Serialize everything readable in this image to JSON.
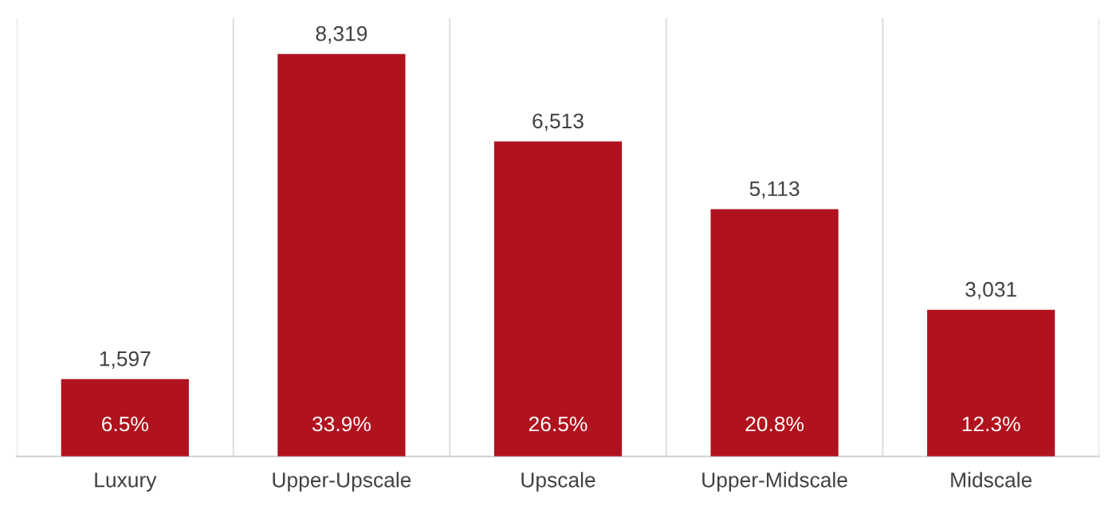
{
  "chart_data": {
    "type": "bar",
    "categories": [
      "Luxury",
      "Upper-Upscale",
      "Upscale",
      "Upper-Midscale",
      "Midscale"
    ],
    "values": [
      1597,
      8319,
      6513,
      5113,
      3031
    ],
    "value_labels": [
      "1,597",
      "8,319",
      "6,513",
      "5,113",
      "3,031"
    ],
    "color": "#b0131e",
    "annotations": [
      "6.5%",
      "33.9%",
      "26.5%",
      "20.8%",
      "12.3%"
    ],
    "grid": "x",
    "tick_labels": "x"
  }
}
